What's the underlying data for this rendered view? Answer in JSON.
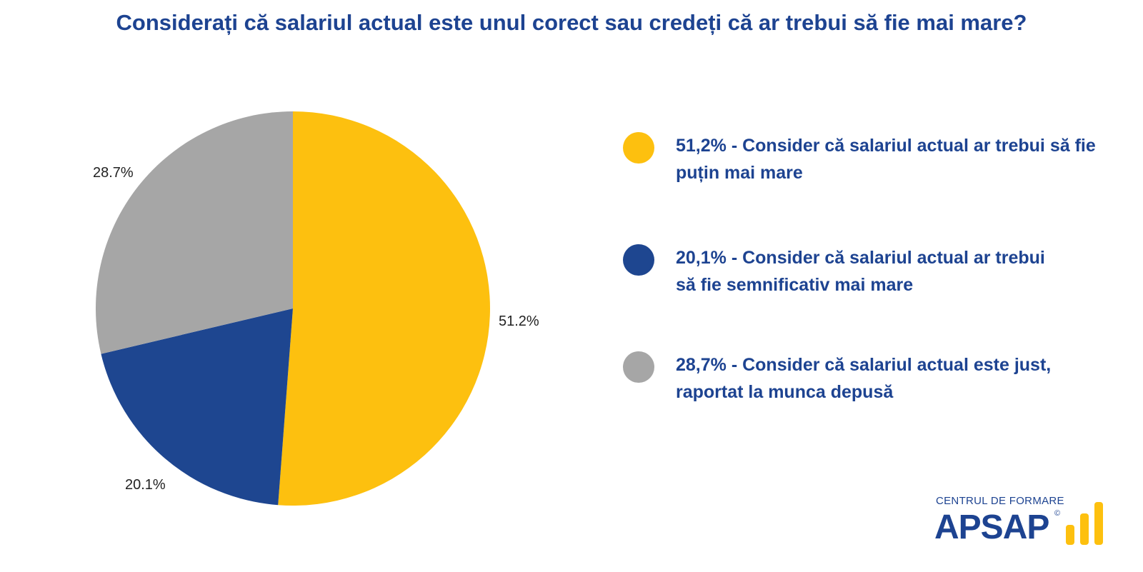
{
  "title": "Considerați că salariul actual este unul corect sau credeți că ar trebui să fie mai mare?",
  "chart_data": {
    "type": "pie",
    "start_angle": "12 o'clock",
    "direction": "clockwise",
    "slices": [
      {
        "label": "51.2%",
        "value": 51.2,
        "color": "#fdc00f"
      },
      {
        "label": "20.1%",
        "value": 20.1,
        "color": "#1e4690"
      },
      {
        "label": "28.7%",
        "value": 28.7,
        "color": "#a6a6a6"
      }
    ],
    "legend": [
      {
        "text": "51,2% - Consider că salariul actual ar trebui să fie puțin mai mare",
        "color": "#fdc00f"
      },
      {
        "text": "20,1% - Consider că salariul actual ar trebui să fie semnificativ mai mare",
        "color": "#1e4690"
      },
      {
        "text": "28,7% - Consider că salariul actual este just, raportat la munca depusă",
        "color": "#a6a6a6"
      }
    ]
  },
  "logo": {
    "top_text": "CENTRUL DE FORMARE",
    "main_text": "APSAP",
    "mark": "©",
    "color": "#1d4391",
    "accent": "#fdc00f"
  }
}
